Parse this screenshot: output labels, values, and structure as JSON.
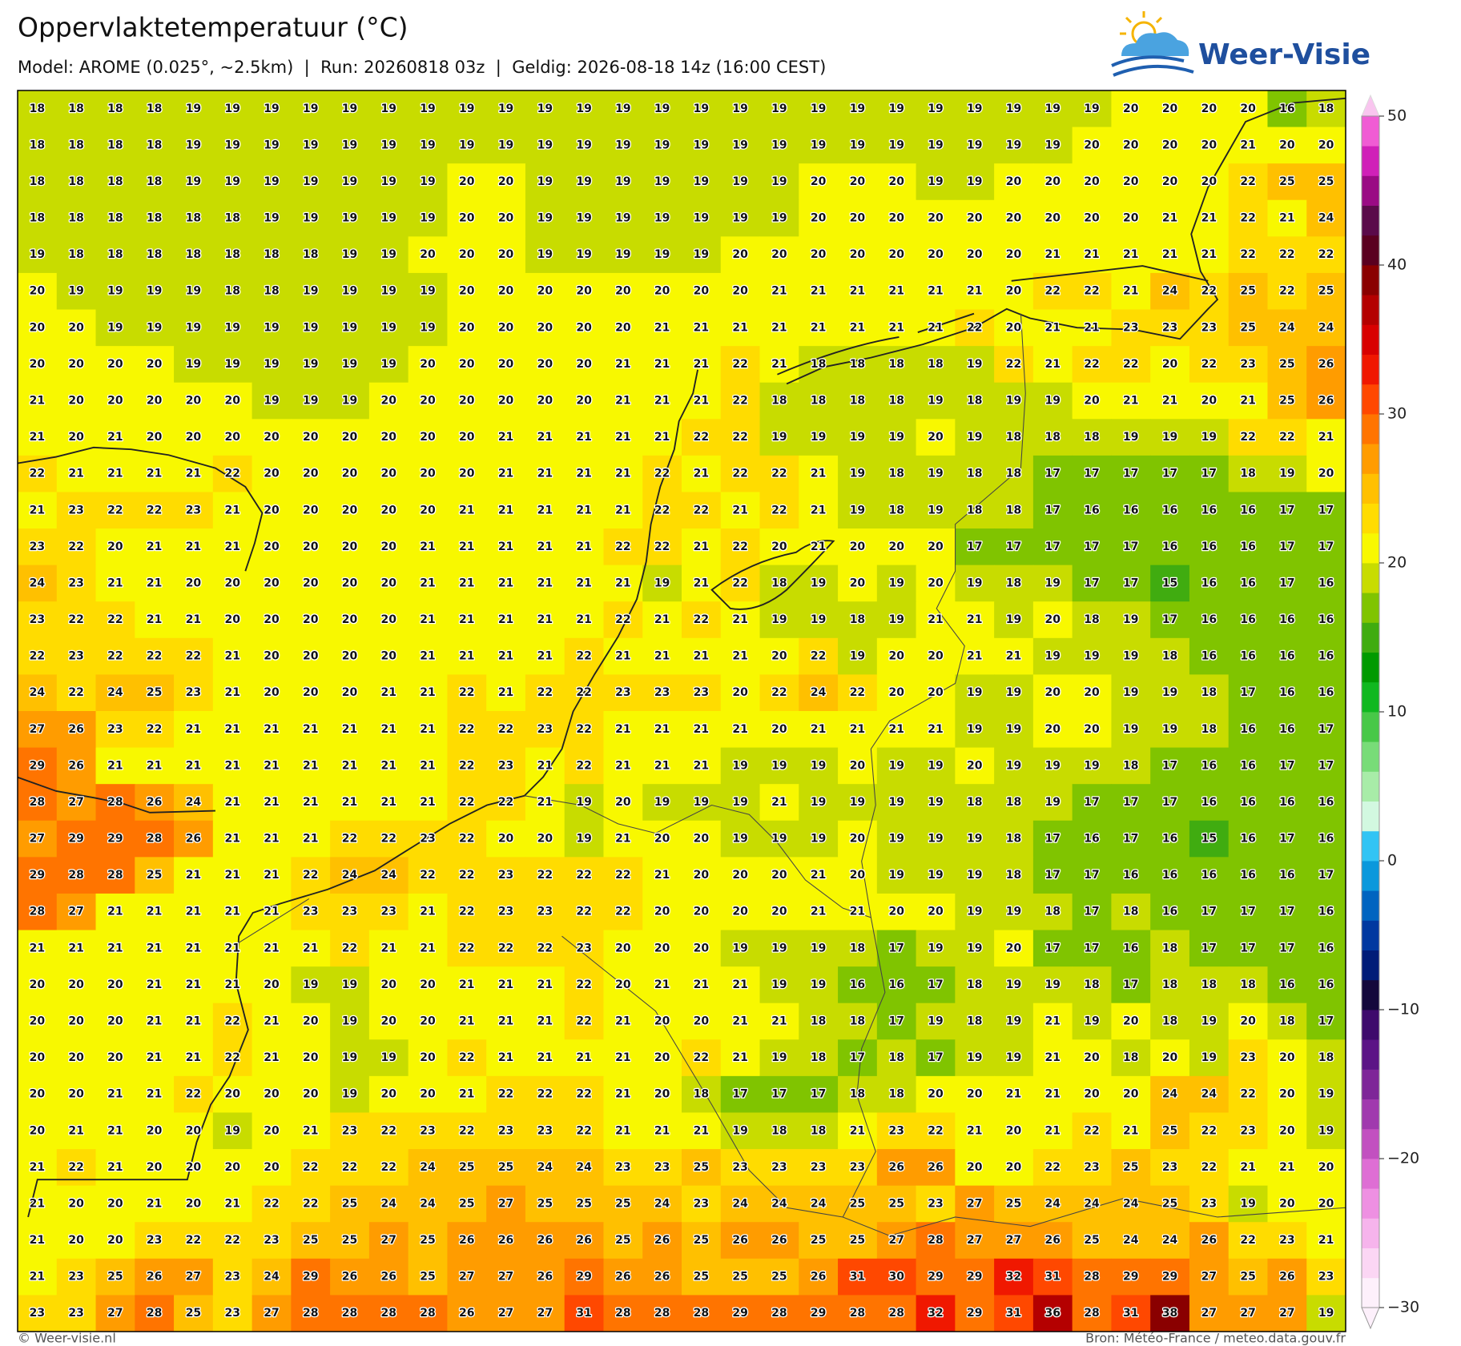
{
  "header": {
    "title": "Oppervlaktetemperatuur (°C)",
    "subtitle": "Model: AROME (0.025°, ~2.5km)  |  Run: 20260818 03z  |  Geldig: 2026-08-18 14z (16:00 CEST)",
    "logo": "Weer-Visie"
  },
  "grid": {
    "rows": [
      [
        18,
        18,
        18,
        18,
        19,
        19,
        19,
        19,
        19,
        19,
        19,
        19,
        19,
        19,
        19,
        19,
        19,
        19,
        19,
        19,
        19,
        19,
        19,
        19,
        19,
        19,
        19,
        19,
        20,
        20,
        20,
        20,
        16,
        18
      ],
      [
        18,
        18,
        18,
        18,
        19,
        19,
        19,
        19,
        19,
        19,
        19,
        19,
        19,
        19,
        19,
        19,
        19,
        19,
        19,
        19,
        19,
        19,
        19,
        19,
        19,
        19,
        19,
        20,
        20,
        20,
        20,
        21,
        20,
        20
      ],
      [
        18,
        18,
        18,
        18,
        19,
        19,
        19,
        19,
        19,
        19,
        19,
        20,
        20,
        19,
        19,
        19,
        19,
        19,
        19,
        19,
        20,
        20,
        20,
        19,
        19,
        20,
        20,
        20,
        20,
        20,
        20,
        22,
        25,
        25
      ],
      [
        18,
        18,
        18,
        18,
        18,
        18,
        19,
        19,
        19,
        19,
        19,
        20,
        20,
        19,
        19,
        19,
        19,
        19,
        19,
        19,
        20,
        20,
        20,
        20,
        20,
        20,
        20,
        20,
        20,
        21,
        21,
        22,
        21,
        24
      ],
      [
        19,
        18,
        18,
        18,
        18,
        18,
        18,
        18,
        19,
        19,
        20,
        20,
        20,
        19,
        19,
        19,
        19,
        19,
        20,
        20,
        20,
        20,
        20,
        20,
        20,
        20,
        21,
        21,
        21,
        21,
        21,
        22,
        22,
        22
      ],
      [
        20,
        19,
        19,
        19,
        19,
        18,
        18,
        19,
        19,
        19,
        19,
        20,
        20,
        20,
        20,
        20,
        20,
        20,
        20,
        21,
        21,
        21,
        21,
        21,
        21,
        20,
        22,
        22,
        21,
        24,
        22,
        25,
        22,
        25
      ],
      [
        20,
        20,
        19,
        19,
        19,
        19,
        19,
        19,
        19,
        19,
        19,
        20,
        20,
        20,
        20,
        20,
        21,
        21,
        21,
        21,
        21,
        21,
        21,
        21,
        22,
        20,
        21,
        21,
        23,
        23,
        23,
        25,
        24,
        24
      ],
      [
        20,
        20,
        20,
        20,
        19,
        19,
        19,
        19,
        19,
        19,
        20,
        20,
        20,
        20,
        20,
        21,
        21,
        21,
        22,
        21,
        18,
        18,
        18,
        18,
        19,
        22,
        21,
        22,
        22,
        20,
        22,
        23,
        25,
        26
      ],
      [
        21,
        20,
        20,
        20,
        20,
        20,
        19,
        19,
        19,
        20,
        20,
        20,
        20,
        20,
        20,
        21,
        21,
        21,
        22,
        18,
        18,
        18,
        18,
        19,
        18,
        19,
        19,
        20,
        21,
        21,
        20,
        21,
        25,
        26
      ],
      [
        21,
        20,
        21,
        20,
        20,
        20,
        20,
        20,
        20,
        20,
        20,
        20,
        21,
        21,
        21,
        21,
        21,
        22,
        22,
        19,
        19,
        19,
        19,
        20,
        19,
        18,
        18,
        18,
        19,
        19,
        19,
        22,
        22,
        21
      ],
      [
        22,
        21,
        21,
        21,
        21,
        22,
        20,
        20,
        20,
        20,
        20,
        20,
        21,
        21,
        21,
        21,
        22,
        21,
        22,
        22,
        21,
        19,
        18,
        19,
        18,
        18,
        17,
        17,
        17,
        17,
        17,
        18,
        19,
        20
      ],
      [
        21,
        23,
        22,
        22,
        23,
        21,
        20,
        20,
        20,
        20,
        20,
        21,
        21,
        21,
        21,
        21,
        22,
        22,
        21,
        22,
        21,
        19,
        18,
        19,
        18,
        18,
        17,
        16,
        16,
        16,
        16,
        16,
        17,
        17
      ],
      [
        23,
        22,
        20,
        21,
        21,
        21,
        20,
        20,
        20,
        20,
        21,
        21,
        21,
        21,
        21,
        22,
        22,
        21,
        22,
        20,
        21,
        20,
        20,
        20,
        17,
        17,
        17,
        17,
        17,
        16,
        16,
        16,
        17,
        17
      ],
      [
        24,
        23,
        21,
        21,
        20,
        20,
        20,
        20,
        20,
        20,
        21,
        21,
        21,
        21,
        21,
        21,
        19,
        21,
        22,
        18,
        19,
        20,
        19,
        20,
        19,
        18,
        19,
        17,
        17,
        15,
        16,
        16,
        17,
        16
      ],
      [
        23,
        22,
        22,
        21,
        21,
        20,
        20,
        20,
        20,
        20,
        21,
        21,
        21,
        21,
        21,
        22,
        21,
        22,
        21,
        19,
        19,
        18,
        19,
        21,
        21,
        19,
        20,
        18,
        19,
        17,
        16,
        16,
        16,
        16
      ],
      [
        22,
        23,
        22,
        22,
        22,
        21,
        20,
        20,
        20,
        20,
        21,
        21,
        21,
        21,
        22,
        21,
        21,
        21,
        21,
        20,
        22,
        19,
        20,
        20,
        21,
        21,
        19,
        19,
        19,
        18,
        16,
        16,
        16,
        16
      ],
      [
        24,
        22,
        24,
        25,
        23,
        21,
        20,
        20,
        20,
        21,
        21,
        22,
        21,
        22,
        22,
        23,
        23,
        23,
        20,
        22,
        24,
        22,
        20,
        20,
        19,
        19,
        20,
        20,
        19,
        19,
        18,
        17,
        16,
        16
      ],
      [
        27,
        26,
        23,
        22,
        21,
        21,
        21,
        21,
        21,
        21,
        21,
        22,
        22,
        23,
        22,
        21,
        21,
        21,
        21,
        20,
        21,
        21,
        21,
        21,
        19,
        19,
        20,
        20,
        19,
        19,
        18,
        16,
        16,
        17
      ],
      [
        29,
        26,
        21,
        21,
        21,
        21,
        21,
        21,
        21,
        21,
        21,
        22,
        23,
        21,
        22,
        21,
        21,
        21,
        19,
        19,
        19,
        20,
        19,
        19,
        20,
        19,
        19,
        19,
        18,
        17,
        16,
        16,
        17,
        17
      ],
      [
        28,
        27,
        28,
        26,
        24,
        21,
        21,
        21,
        21,
        21,
        21,
        22,
        22,
        21,
        19,
        20,
        19,
        19,
        19,
        21,
        19,
        19,
        19,
        19,
        18,
        18,
        19,
        17,
        17,
        17,
        16,
        16,
        16,
        16
      ],
      [
        27,
        29,
        29,
        28,
        26,
        21,
        21,
        21,
        22,
        22,
        23,
        22,
        20,
        20,
        19,
        21,
        20,
        20,
        19,
        19,
        19,
        20,
        19,
        19,
        19,
        18,
        17,
        16,
        17,
        16,
        15,
        16,
        17,
        16
      ],
      [
        29,
        28,
        28,
        25,
        21,
        21,
        21,
        22,
        24,
        24,
        22,
        22,
        23,
        22,
        22,
        22,
        21,
        20,
        20,
        20,
        21,
        20,
        19,
        19,
        19,
        18,
        17,
        17,
        16,
        16,
        16,
        16,
        16,
        17
      ],
      [
        28,
        27,
        21,
        21,
        21,
        21,
        21,
        23,
        23,
        23,
        21,
        22,
        23,
        23,
        22,
        22,
        20,
        20,
        20,
        20,
        21,
        21,
        20,
        20,
        19,
        19,
        18,
        17,
        18,
        16,
        17,
        17,
        17,
        16
      ],
      [
        21,
        21,
        21,
        21,
        21,
        21,
        21,
        21,
        22,
        21,
        21,
        22,
        22,
        22,
        23,
        20,
        20,
        20,
        19,
        19,
        19,
        18,
        17,
        19,
        19,
        20,
        17,
        17,
        16,
        18,
        17,
        17,
        17,
        16
      ],
      [
        20,
        20,
        20,
        21,
        21,
        21,
        20,
        19,
        19,
        20,
        20,
        21,
        21,
        21,
        22,
        20,
        21,
        21,
        21,
        19,
        19,
        16,
        16,
        17,
        18,
        19,
        19,
        18,
        17,
        18,
        18,
        18,
        16,
        16
      ],
      [
        20,
        20,
        20,
        21,
        21,
        22,
        21,
        20,
        19,
        20,
        20,
        21,
        21,
        21,
        22,
        21,
        20,
        20,
        21,
        21,
        18,
        18,
        17,
        19,
        18,
        19,
        21,
        19,
        20,
        18,
        19,
        20,
        18,
        17
      ],
      [
        20,
        20,
        20,
        21,
        21,
        22,
        21,
        20,
        19,
        19,
        20,
        22,
        21,
        21,
        21,
        21,
        20,
        22,
        21,
        19,
        18,
        17,
        18,
        17,
        19,
        19,
        21,
        20,
        18,
        20,
        19,
        23,
        20,
        18
      ],
      [
        20,
        20,
        21,
        21,
        22,
        20,
        20,
        20,
        19,
        20,
        20,
        21,
        22,
        22,
        22,
        21,
        20,
        18,
        17,
        17,
        17,
        18,
        18,
        20,
        20,
        21,
        21,
        20,
        20,
        24,
        24,
        22,
        20,
        19
      ],
      [
        20,
        21,
        21,
        20,
        20,
        19,
        20,
        21,
        23,
        22,
        23,
        22,
        23,
        23,
        22,
        21,
        21,
        21,
        19,
        18,
        18,
        21,
        23,
        22,
        21,
        20,
        21,
        22,
        21,
        25,
        22,
        23,
        20,
        19
      ],
      [
        21,
        22,
        21,
        20,
        20,
        20,
        20,
        22,
        22,
        22,
        24,
        25,
        25,
        24,
        24,
        23,
        23,
        25,
        23,
        23,
        23,
        23,
        26,
        26,
        20,
        20,
        22,
        23,
        25,
        23,
        22,
        21,
        21,
        20
      ],
      [
        21,
        20,
        20,
        21,
        20,
        21,
        22,
        22,
        25,
        24,
        24,
        25,
        27,
        25,
        25,
        25,
        24,
        23,
        24,
        24,
        24,
        25,
        25,
        23,
        27,
        25,
        24,
        24,
        24,
        25,
        23,
        19,
        20,
        20
      ],
      [
        21,
        20,
        20,
        23,
        22,
        22,
        23,
        25,
        25,
        27,
        25,
        26,
        26,
        26,
        26,
        25,
        26,
        25,
        26,
        26,
        25,
        25,
        27,
        28,
        27,
        27,
        26,
        25,
        24,
        24,
        26,
        22,
        23,
        21
      ],
      [
        21,
        23,
        25,
        26,
        27,
        23,
        24,
        29,
        26,
        26,
        25,
        27,
        27,
        26,
        29,
        26,
        26,
        25,
        25,
        25,
        26,
        31,
        30,
        29,
        29,
        32,
        31,
        28,
        29,
        29,
        27,
        25,
        26,
        23
      ],
      [
        23,
        23,
        27,
        28,
        25,
        23,
        27,
        28,
        28,
        28,
        28,
        26,
        27,
        27,
        31,
        28,
        28,
        28,
        29,
        28,
        29,
        28,
        28,
        32,
        29,
        31,
        36,
        28,
        31,
        38,
        27,
        27,
        27,
        19
      ]
    ]
  },
  "colorbar": {
    "lim": [
      -30,
      50
    ],
    "ticks": [
      {
        "value": -30,
        "label": "−30"
      },
      {
        "value": -20,
        "label": "−20"
      },
      {
        "value": -10,
        "label": "−10"
      },
      0,
      10,
      20,
      30,
      40,
      50
    ],
    "colors": [
      "#fdf0fb",
      "#fbd6f4",
      "#f6b4ec",
      "#ee90e2",
      "#de6ed4",
      "#c250c0",
      "#a03aae",
      "#7e2698",
      "#5c1486",
      "#3e0a6c",
      "#14083c",
      "#001c78",
      "#0038a0",
      "#0064c0",
      "#0a98dc",
      "#32c4f4",
      "#d2f8e0",
      "#a8eca8",
      "#78dc78",
      "#48c848",
      "#10b820",
      "#009a00",
      "#40ac10",
      "#80c400",
      "#c8dc00",
      "#f8f800",
      "#ffdc00",
      "#ffc000",
      "#ff9c00",
      "#ff7400",
      "#ff4800",
      "#f01800",
      "#d80000",
      "#b40000",
      "#8a0000",
      "#5a0020",
      "#5a0a4a",
      "#9a0a84",
      "#d020b8",
      "#f05cd4"
    ]
  },
  "footer": {
    "left": "© Weer-visie.nl",
    "right": "Bron: Météo-France / meteo.data.gouv.fr"
  }
}
